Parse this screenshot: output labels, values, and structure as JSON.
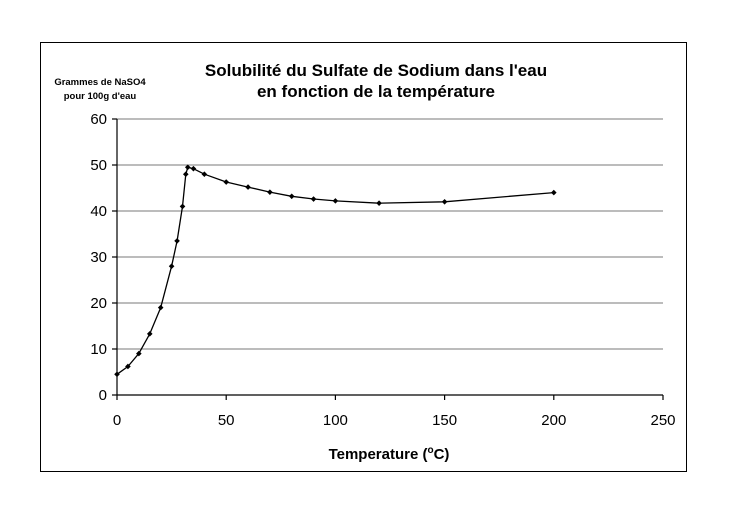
{
  "chart_data": {
    "type": "line",
    "title_lines": [
      "Solubilité du Sulfate de Sodium dans l'eau",
      "en fonction de la température"
    ],
    "ylabel_lines": [
      "Grammes de NaSO4",
      "pour 100g d'eau"
    ],
    "xlabel": {
      "text": "Temperature (",
      "sup": "o",
      "unit": "C)"
    },
    "xlim": [
      0,
      250
    ],
    "ylim": [
      0,
      60
    ],
    "xticks": [
      0,
      50,
      100,
      150,
      200,
      250
    ],
    "yticks": [
      0,
      10,
      20,
      30,
      40,
      50,
      60
    ],
    "grid": "horizontal",
    "legend": "none",
    "series": [
      {
        "color": "#000000",
        "marker": "diamond",
        "x": [
          0,
          5,
          10,
          15,
          20,
          25,
          27.5,
          30,
          31.5,
          32.4,
          35,
          40,
          50,
          60,
          70,
          80,
          90,
          100,
          120,
          150,
          200
        ],
        "y": [
          4.5,
          6.2,
          9.0,
          13.3,
          19.0,
          28.0,
          33.5,
          41.0,
          48.0,
          49.5,
          49.2,
          48.0,
          46.3,
          45.2,
          44.1,
          43.2,
          42.6,
          42.2,
          41.7,
          42.0,
          44.0
        ]
      }
    ]
  }
}
